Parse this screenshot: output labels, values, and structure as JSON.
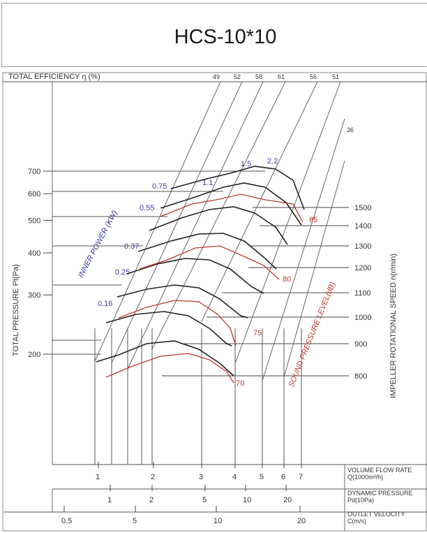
{
  "chart_data": {
    "type": "line",
    "title": "HCS-10*10",
    "efficiency": {
      "label": "TOTAL EFFICIENCY η (%)",
      "ticks": [
        "49",
        "52",
        "58",
        "61",
        "56",
        "51"
      ],
      "extra": "36"
    },
    "ylabel": "TOTAL PRESSURE Pt(Pa)",
    "ylim": [
      150,
      800
    ],
    "yticks": [
      700,
      600,
      500,
      400,
      300,
      200
    ],
    "speed": {
      "label": "IMPELLER ROTATIONAL SPEED n(r/min)",
      "values": [
        1500,
        1400,
        1300,
        1200,
        1100,
        1000,
        900,
        800
      ]
    },
    "power": {
      "label": "INNER POWER (KW)",
      "values": [
        "0.16",
        "0.25",
        "0.37",
        "0.55",
        "0.75",
        "1.1",
        "1.5",
        "2.2"
      ]
    },
    "sound": {
      "label": "SOUND PRESSURE LEVEL(dB)",
      "values": [
        "70",
        "75",
        "80",
        "85"
      ]
    },
    "x_axes": [
      {
        "label_line1": "VOLUME FLOW RATE",
        "label_line2": "Q(1000m³/h)",
        "ticks": [
          "1",
          "2",
          "3",
          "4",
          "5",
          "6",
          "7"
        ]
      },
      {
        "label_line1": "DYNAMIC PRESSURE",
        "label_line2": "Pd(10Pa)",
        "ticks": [
          "1",
          "2",
          "5",
          "10",
          "20"
        ]
      },
      {
        "label_line1": "OUTLET VELOCITY",
        "label_line2": "C(m/s)",
        "ticks": [
          "0.5",
          "5",
          "10",
          "20"
        ]
      }
    ]
  }
}
